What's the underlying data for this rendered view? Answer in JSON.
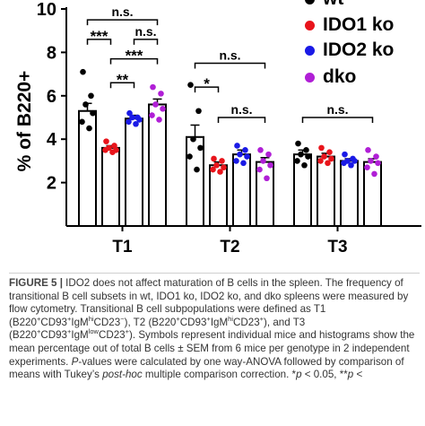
{
  "chart_data": {
    "type": "bar",
    "ylabel": "% of B220+",
    "ylim": [
      0,
      10
    ],
    "yticks": [
      2,
      4,
      6,
      8,
      10
    ],
    "categories": [
      "T1",
      "T2",
      "T3"
    ],
    "series": [
      {
        "name": "wt",
        "color": "#000000",
        "values": [
          5.3,
          4.1,
          3.3
        ],
        "errors": [
          0.35,
          0.55,
          0.2
        ],
        "points": [
          [
            7.1,
            6.0,
            5.6,
            5.2,
            4.8,
            4.5
          ],
          [
            6.5,
            5.3,
            4.0,
            3.6,
            3.2,
            2.6
          ],
          [
            3.8,
            3.5,
            3.3,
            3.2,
            3.0,
            2.8
          ]
        ]
      },
      {
        "name": "IDO1 ko",
        "color": "#e8141b",
        "values": [
          3.6,
          2.8,
          3.2
        ],
        "errors": [
          0.1,
          0.15,
          0.15
        ],
        "points": [
          [
            3.9,
            3.7,
            3.6,
            3.5,
            3.5,
            3.4
          ],
          [
            3.1,
            3.0,
            2.8,
            2.7,
            2.6,
            2.5
          ],
          [
            3.6,
            3.4,
            3.2,
            3.1,
            3.0,
            2.9
          ]
        ]
      },
      {
        "name": "IDO2 ko",
        "color": "#1a1ae6",
        "values": [
          4.95,
          3.3,
          3.0
        ],
        "errors": [
          0.15,
          0.2,
          0.1
        ],
        "points": [
          [
            5.2,
            5.0,
            5.0,
            4.9,
            4.8,
            4.7
          ],
          [
            3.7,
            3.5,
            3.3,
            3.2,
            3.0,
            2.9
          ],
          [
            3.3,
            3.1,
            3.0,
            3.0,
            2.9,
            2.8
          ]
        ]
      },
      {
        "name": "dko",
        "color": "#b01fd6",
        "values": [
          5.6,
          2.95,
          2.95
        ],
        "errors": [
          0.25,
          0.2,
          0.15
        ],
        "points": [
          [
            6.4,
            6.1,
            5.6,
            5.4,
            5.1,
            4.9
          ],
          [
            3.5,
            3.3,
            3.0,
            2.8,
            2.6,
            2.2
          ],
          [
            3.5,
            3.2,
            3.0,
            2.9,
            2.7,
            2.4
          ]
        ]
      }
    ],
    "significance": [
      {
        "category": "T1",
        "from": 0,
        "to": 3,
        "label": "n.s."
      },
      {
        "category": "T1",
        "from": 0,
        "to": 1,
        "label": "***"
      },
      {
        "category": "T1",
        "from": 2,
        "to": 3,
        "label": "n.s."
      },
      {
        "category": "T1",
        "from": 1,
        "to": 3,
        "label": "***"
      },
      {
        "category": "T1",
        "from": 1,
        "to": 2,
        "label": "**"
      },
      {
        "category": "T2",
        "from": 0,
        "to": 3,
        "label": "n.s."
      },
      {
        "category": "T2",
        "from": 0,
        "to": 1,
        "label": "*"
      },
      {
        "category": "T2",
        "from": 1,
        "to": 3,
        "label": "n.s."
      },
      {
        "category": "T3",
        "from": 0,
        "to": 3,
        "label": "n.s."
      }
    ],
    "legend_position": "top-right"
  },
  "caption": {
    "figure_label": "FIGURE 5 |",
    "text_html": " IDO2 does not affect maturation of B cells in the spleen. The frequency of transitional B cell subsets in wt, IDO1 ko, IDO2 ko, and dko spleens were measured by flow cytometry. Transitional B cell subpopulations were defined as T1 (B220<sup>+</sup>CD93<sup>+</sup>IgM<sup>hi</sup>CD23<sup>−</sup>), T2 (B220<sup>+</sup>CD93<sup>+</sup>IgM<sup>hi</sup>CD23<sup>+</sup>), and T3 (B220<sup>+</sup>CD93<sup>+</sup>IgM<sup>low</sup>CD23<sup>+</sup>). Symbols represent individual mice and histograms show the mean percentage out of total B cells ± SEM from 6 mice per genotype in 2 independent experiments. <i>P</i>-values were calculated by one way-ANOVA followed by comparison of means with Tukey’s <i>post-hoc</i> multiple comparison correction. *<i>p</i> &lt; 0.05, **<i>p</i> &lt;"
  }
}
